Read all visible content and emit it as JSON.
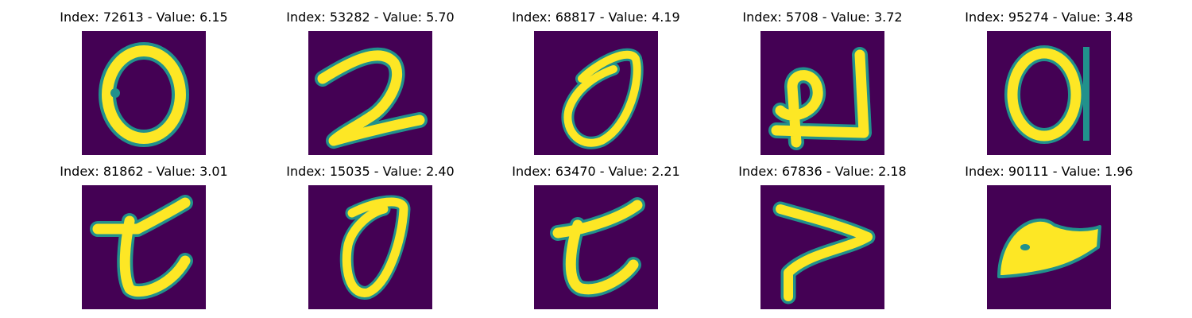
{
  "panels": [
    {
      "index": "72613",
      "value": "6.15",
      "title": "Index: 72613 - Value: 6.15",
      "glyph": "0"
    },
    {
      "index": "53282",
      "value": "5.70",
      "title": "Index: 53282 - Value: 5.70",
      "glyph": "2"
    },
    {
      "index": "68817",
      "value": "4.19",
      "title": "Index: 68817 - Value: 4.19",
      "glyph": "0"
    },
    {
      "index": "5708",
      "value": "3.72",
      "title": "Index: 5708 - Value: 3.72",
      "glyph": "u"
    },
    {
      "index": "95274",
      "value": "3.48",
      "title": "Index: 95274 - Value: 3.48",
      "glyph": "0"
    },
    {
      "index": "81862",
      "value": "3.01",
      "title": "Index: 81862 - Value: 3.01",
      "glyph": "t"
    },
    {
      "index": "15035",
      "value": "2.40",
      "title": "Index: 15035 - Value: 2.40",
      "glyph": "0"
    },
    {
      "index": "63470",
      "value": "2.21",
      "title": "Index: 63470 - Value: 2.21",
      "glyph": "t"
    },
    {
      "index": "67836",
      "value": "2.18",
      "title": "Index: 67836 - Value: 2.18",
      "glyph": "7"
    },
    {
      "index": "90111",
      "value": "1.96",
      "title": "Index: 90111 - Value: 1.96",
      "glyph": "blob"
    }
  ],
  "colors": {
    "background": "#440154",
    "stroke": "#fde725",
    "edge": "#21918c"
  }
}
